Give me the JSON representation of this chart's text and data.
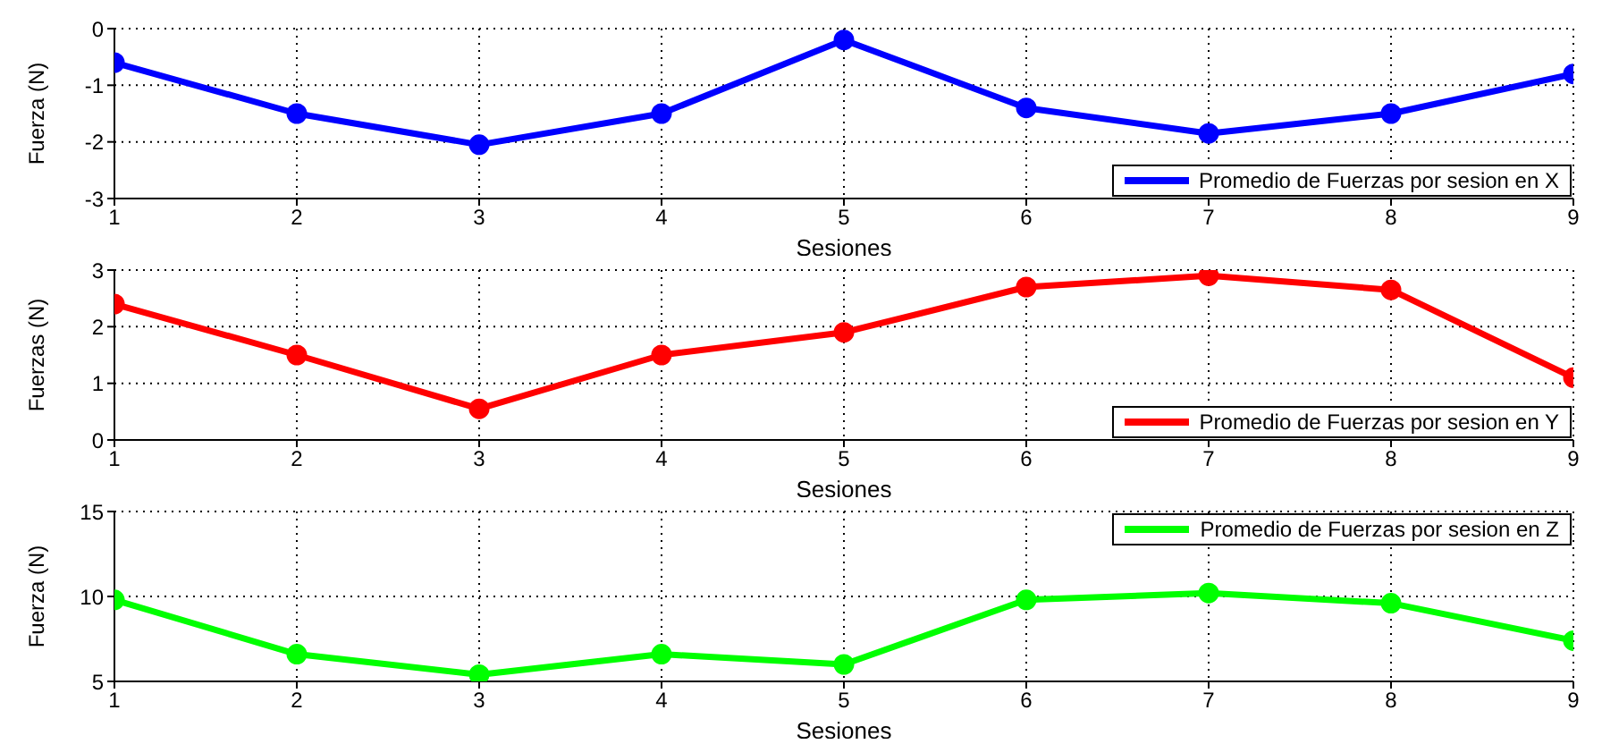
{
  "chart_data": [
    {
      "type": "line",
      "x": [
        1,
        2,
        3,
        4,
        5,
        6,
        7,
        8,
        9
      ],
      "xlabel": "Sesiones",
      "ylabel": "Fuerza (N)",
      "xlim": [
        1,
        9
      ],
      "xticks": [
        1,
        2,
        3,
        4,
        5,
        6,
        7,
        8,
        9
      ],
      "ylim": [
        -3,
        0
      ],
      "yticks": [
        -3,
        -2,
        -1,
        0
      ],
      "grid": true,
      "legend": "bottom right",
      "marker": "circle",
      "line_style": "solid",
      "series": [
        {
          "name": "Promedio de Fuerzas por sesion en X",
          "color": "#0000ff",
          "values": [
            -0.6,
            -1.5,
            -2.05,
            -1.5,
            -0.2,
            -1.4,
            -1.85,
            -1.5,
            -0.8
          ]
        }
      ]
    },
    {
      "type": "line",
      "x": [
        1,
        2,
        3,
        4,
        5,
        6,
        7,
        8,
        9
      ],
      "xlabel": "Sesiones",
      "ylabel": "Fuerzas (N)",
      "xlim": [
        1,
        9
      ],
      "xticks": [
        1,
        2,
        3,
        4,
        5,
        6,
        7,
        8,
        9
      ],
      "ylim": [
        0,
        3
      ],
      "yticks": [
        0,
        1,
        2,
        3
      ],
      "grid": true,
      "legend": "bottom right",
      "marker": "circle",
      "line_style": "solid",
      "series": [
        {
          "name": "Promedio de Fuerzas por sesion en Y",
          "color": "#ff0000",
          "values": [
            2.4,
            1.5,
            0.55,
            1.5,
            1.9,
            2.7,
            2.9,
            2.65,
            1.1
          ]
        }
      ]
    },
    {
      "type": "line",
      "x": [
        1,
        2,
        3,
        4,
        5,
        6,
        7,
        8,
        9
      ],
      "xlabel": "Sesiones",
      "ylabel": "Fuerza (N)",
      "xlim": [
        1,
        9
      ],
      "xticks": [
        1,
        2,
        3,
        4,
        5,
        6,
        7,
        8,
        9
      ],
      "ylim": [
        5,
        15
      ],
      "yticks": [
        5,
        10,
        15
      ],
      "grid": true,
      "legend": "top right",
      "marker": "circle",
      "line_style": "solid",
      "series": [
        {
          "name": "Promedio de Fuerzas por sesion en Z",
          "color": "#00ff00",
          "values": [
            9.8,
            6.6,
            5.4,
            6.6,
            6.0,
            9.8,
            10.2,
            9.6,
            7.4
          ]
        }
      ]
    }
  ]
}
